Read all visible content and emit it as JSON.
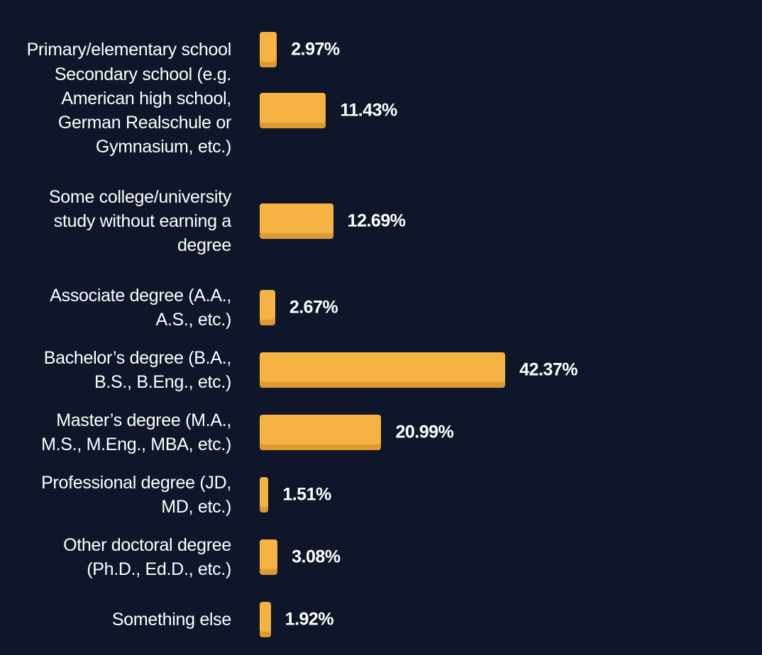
{
  "chart_data": {
    "type": "bar",
    "orientation": "horizontal",
    "categories": [
      "Primary/elementary school",
      "Secondary school (e.g. American high school, German Realschule or Gymnasium, etc.)",
      "Some college/university study without earning a degree",
      "Associate degree (A.A., A.S., etc.)",
      "Bachelor’s degree (B.A., B.S., B.Eng., etc.)",
      "Master’s degree (M.A., M.S., M.Eng., MBA, etc.)",
      "Professional degree (JD, MD, etc.)",
      "Other doctoral degree (Ph.D., Ed.D., etc.)",
      "Something else"
    ],
    "values": [
      2.97,
      11.43,
      12.69,
      2.67,
      42.37,
      20.99,
      1.51,
      3.08,
      1.92
    ],
    "value_labels": [
      "2.97%",
      "11.43%",
      "12.69%",
      "2.67%",
      "42.37%",
      "20.99%",
      "1.51%",
      "3.08%",
      "1.92%"
    ],
    "color": "#f4b343"
  }
}
